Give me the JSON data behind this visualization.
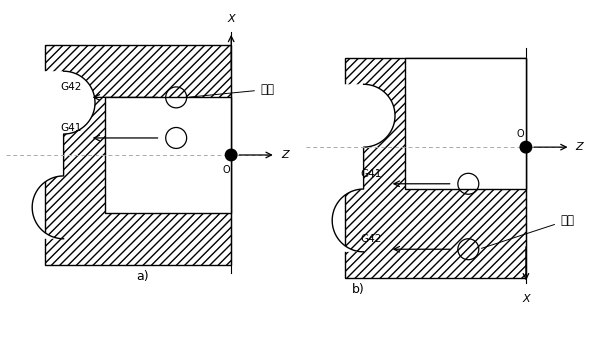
{
  "bg_color": "#ffffff",
  "fig_label_a": "a)",
  "fig_label_b": "b)",
  "label_daoju": "刀具",
  "label_G41": "G41",
  "label_G42": "G42",
  "label_O": "O",
  "label_X": "X",
  "label_Z": "Z",
  "hatch": "////",
  "lc": "#000000",
  "dashed_color": "#aaaaaa"
}
